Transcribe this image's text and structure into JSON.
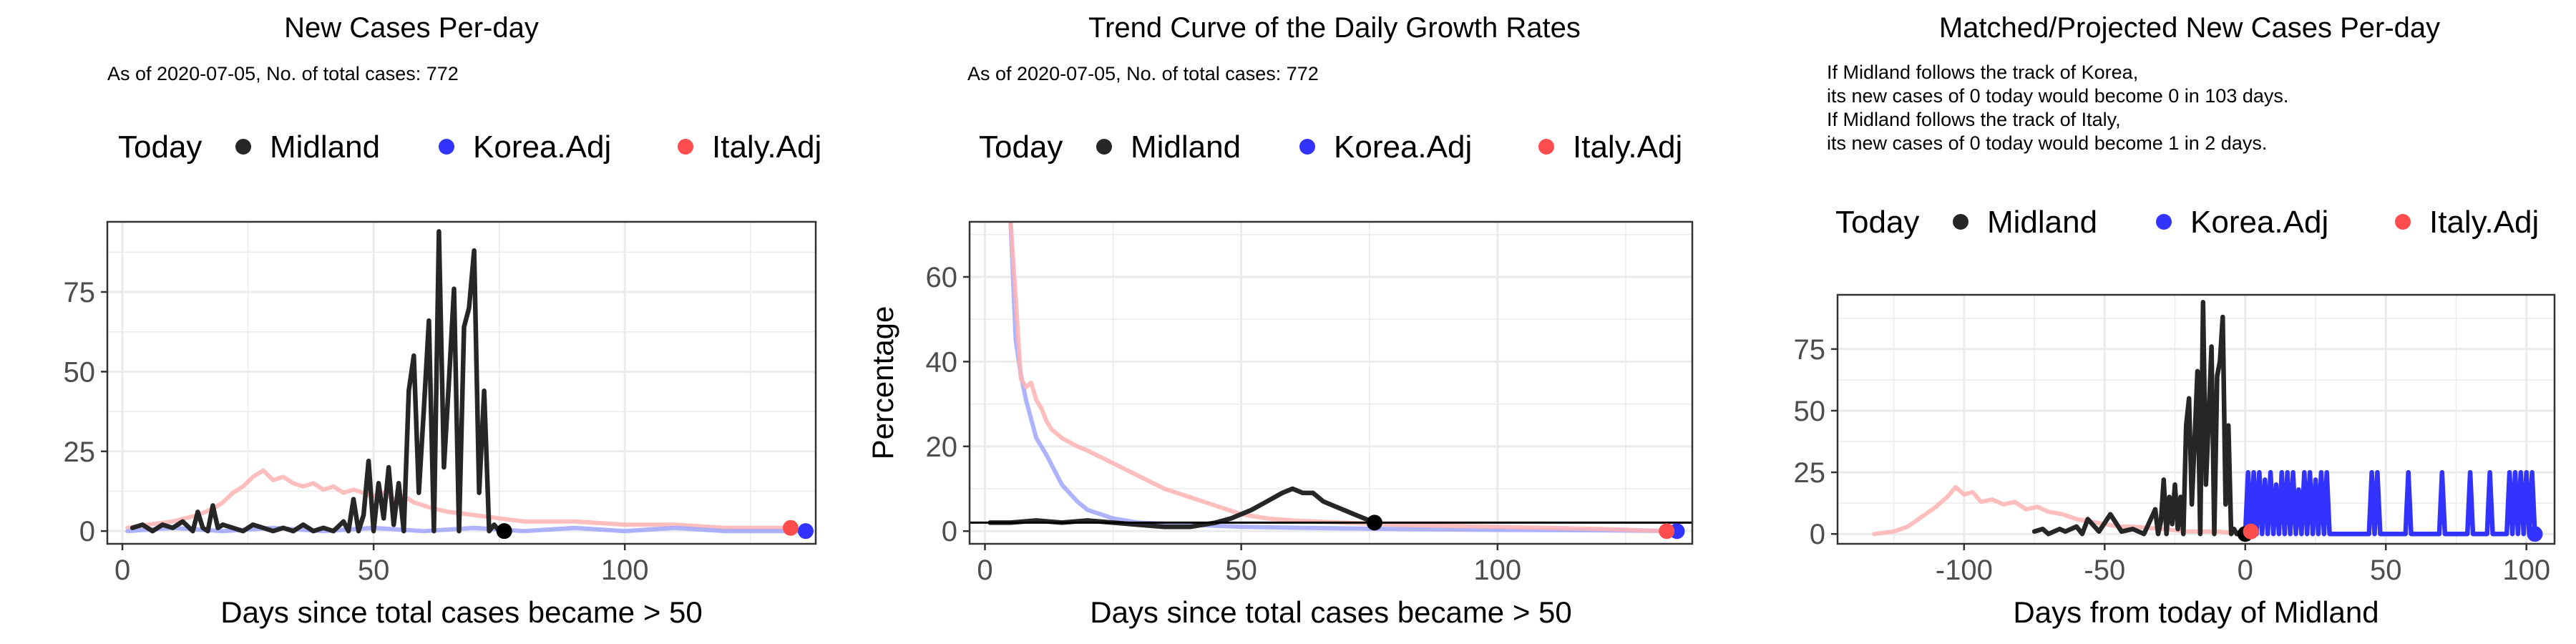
{
  "colors": {
    "today": "#000000",
    "midland": "#262626",
    "korea": "#3333ff",
    "italy": "#ff4d4d",
    "korea_faint": "#9fa6ff",
    "italy_faint": "#ffb3b3",
    "grid": "#ebebeb",
    "panel_border": "#333333"
  },
  "legend": {
    "title": "Today",
    "entries": [
      "Midland",
      "Korea.Adj",
      "Italy.Adj"
    ]
  },
  "chart_data": [
    {
      "type": "line",
      "title": "New Cases Per-day",
      "subtitle_lines": [
        "As of 2020-07-05, No. of total cases: 772"
      ],
      "xlabel": "Days since total cases became > 50",
      "ylabel": "",
      "xlim": [
        -3,
        138
      ],
      "ylim": [
        -4,
        97
      ],
      "xticks": [
        0,
        50,
        100
      ],
      "yticks": [
        0,
        25,
        50,
        75
      ],
      "grid": true,
      "legend_position": "top",
      "series": [
        {
          "name": "Italy.Adj",
          "style": "faint",
          "x": [
            1,
            5,
            10,
            15,
            18,
            20,
            22,
            24,
            26,
            28,
            30,
            32,
            34,
            36,
            38,
            40,
            42,
            44,
            46,
            48,
            50,
            52,
            54,
            56,
            58,
            60,
            62,
            65,
            70,
            75,
            80,
            90,
            100,
            110,
            120,
            133
          ],
          "y": [
            1,
            2,
            3,
            5,
            7,
            9,
            12,
            14,
            17,
            19,
            16,
            17,
            15,
            14,
            15,
            13,
            14,
            12,
            13,
            12,
            11,
            12,
            10,
            11,
            9,
            8,
            7,
            6,
            5,
            4,
            3,
            3,
            2,
            2,
            1,
            1
          ]
        },
        {
          "name": "Korea.Adj",
          "style": "faint",
          "x": [
            1,
            10,
            20,
            30,
            40,
            50,
            60,
            70,
            80,
            90,
            100,
            110,
            120,
            136
          ],
          "y": [
            0,
            1,
            0,
            1,
            0,
            1,
            0,
            1,
            0,
            1,
            0,
            1,
            0,
            0
          ]
        },
        {
          "name": "Midland",
          "style": "bold",
          "x": [
            2,
            4,
            6,
            8,
            10,
            12,
            14,
            15,
            16,
            17,
            18,
            19,
            20,
            22,
            24,
            26,
            28,
            30,
            32,
            34,
            36,
            38,
            40,
            42,
            44,
            45,
            46,
            47,
            48,
            49,
            50,
            51,
            52,
            53,
            54,
            55,
            56,
            57,
            58,
            59,
            60,
            61,
            62,
            63,
            64,
            65,
            66,
            67,
            68,
            69,
            70,
            71,
            72,
            73,
            74,
            75,
            76
          ],
          "y": [
            1,
            2,
            0,
            2,
            1,
            3,
            0,
            6,
            1,
            0,
            8,
            1,
            2,
            1,
            0,
            2,
            1,
            0,
            1,
            0,
            2,
            0,
            1,
            0,
            3,
            0,
            10,
            0,
            5,
            22,
            0,
            15,
            4,
            20,
            2,
            15,
            0,
            44,
            55,
            12,
            38,
            66,
            0,
            94,
            20,
            47,
            76,
            0,
            64,
            70,
            88,
            12,
            44,
            0,
            2,
            0,
            0
          ]
        }
      ],
      "today_points": [
        {
          "series": "Midland",
          "x": 76,
          "y": 0
        },
        {
          "series": "Korea.Adj",
          "x": 136,
          "y": 0
        },
        {
          "series": "Italy.Adj",
          "x": 133,
          "y": 1
        }
      ]
    },
    {
      "type": "line",
      "title": "Trend Curve of the Daily Growth Rates",
      "subtitle_lines": [
        "As of 2020-07-05, No. of total cases: 772"
      ],
      "xlabel": "Days since total cases became > 50",
      "ylabel": "Percentage",
      "xlim": [
        -3,
        138
      ],
      "ylim": [
        -3,
        73
      ],
      "xticks": [
        0,
        50,
        100
      ],
      "yticks": [
        0,
        20,
        40,
        60
      ],
      "grid": true,
      "reference_line_y": 2,
      "legend_position": "top",
      "series": [
        {
          "name": "Korea.Adj",
          "style": "faint",
          "x": [
            5,
            6,
            7,
            8,
            10,
            12,
            15,
            18,
            20,
            25,
            30,
            40,
            50,
            60,
            80,
            100,
            120,
            135
          ],
          "y": [
            73,
            45,
            37,
            31,
            22,
            18,
            11,
            7,
            5,
            3,
            2,
            1.5,
            1,
            0.8,
            0.5,
            0.3,
            0.2,
            0
          ]
        },
        {
          "name": "Italy.Adj",
          "style": "faint",
          "x": [
            5,
            6,
            7,
            8,
            9,
            10,
            11,
            12,
            13,
            15,
            18,
            20,
            25,
            30,
            35,
            40,
            45,
            50,
            55,
            60,
            70,
            80,
            100,
            120,
            133
          ],
          "y": [
            73,
            55,
            36,
            34,
            35,
            31,
            29,
            26,
            24,
            22,
            20,
            19,
            16,
            13,
            10,
            8,
            6,
            4,
            3,
            2.5,
            2,
            1.5,
            1,
            0.5,
            0
          ]
        },
        {
          "name": "Midland",
          "style": "bold",
          "x": [
            1,
            5,
            10,
            15,
            20,
            25,
            30,
            35,
            40,
            45,
            48,
            50,
            52,
            55,
            58,
            60,
            62,
            64,
            66,
            68,
            70,
            72,
            74,
            76
          ],
          "y": [
            2,
            2,
            2.5,
            2,
            2.5,
            2,
            1.5,
            1,
            1,
            2,
            3,
            4,
            5,
            7,
            9,
            10,
            9,
            9,
            7,
            6,
            5,
            4,
            3,
            2
          ]
        }
      ],
      "today_points": [
        {
          "series": "Midland",
          "x": 76,
          "y": 2
        },
        {
          "series": "Korea.Adj",
          "x": 135,
          "y": 0
        },
        {
          "series": "Italy.Adj",
          "x": 133,
          "y": 0
        }
      ]
    },
    {
      "type": "line",
      "title": "Matched/Projected New Cases Per-day",
      "subtitle_lines": [
        "If Midland follows the track of Korea,",
        "its new cases of 0 today would become 0 in 103 days.",
        "If Midland follows the track of Italy,",
        "its new cases of 0 today would become 1 in 2 days."
      ],
      "xlabel": "Days from today of Midland",
      "ylabel": "",
      "xlim": [
        -145,
        110
      ],
      "ylim": [
        -4,
        97
      ],
      "xticks": [
        -100,
        -50,
        0,
        50,
        100
      ],
      "yticks": [
        0,
        25,
        50,
        75
      ],
      "grid": true,
      "legend_position": "top",
      "series": [
        {
          "name": "Italy.Adj",
          "style": "faint",
          "x": [
            -132,
            -125,
            -120,
            -115,
            -110,
            -106,
            -103,
            -100,
            -97,
            -94,
            -90,
            -86,
            -82,
            -78,
            -74,
            -70,
            -65,
            -60,
            -55,
            -50,
            -45,
            -40,
            -30,
            -20,
            -10,
            0
          ],
          "y": [
            0,
            1,
            3,
            7,
            11,
            15,
            19,
            16,
            17,
            13,
            14,
            12,
            13,
            10,
            11,
            9,
            8,
            6,
            5,
            4,
            3,
            3,
            2,
            1,
            1,
            0
          ]
        },
        {
          "name": "Midland",
          "style": "bold",
          "x": [
            -75,
            -72,
            -70,
            -66,
            -64,
            -60,
            -58,
            -56,
            -52,
            -48,
            -44,
            -40,
            -36,
            -32,
            -31,
            -30,
            -29,
            -28,
            -27,
            -26,
            -25,
            -24,
            -23,
            -22,
            -21,
            -20,
            -19,
            -18,
            -17,
            -16,
            -15,
            -14,
            -13,
            -12,
            -11,
            -10,
            -9,
            -8,
            -7,
            -6,
            -5,
            -4,
            -3,
            -2,
            -1,
            0
          ],
          "y": [
            1,
            2,
            0,
            2,
            1,
            3,
            0,
            6,
            1,
            8,
            1,
            2,
            0,
            10,
            0,
            5,
            22,
            0,
            15,
            4,
            20,
            2,
            15,
            0,
            44,
            55,
            12,
            38,
            66,
            0,
            94,
            20,
            47,
            76,
            0,
            64,
            70,
            88,
            12,
            44,
            0,
            2,
            0,
            0,
            0,
            0
          ]
        },
        {
          "name": "Korea.Adj",
          "style": "bold",
          "x": [
            0,
            1,
            2,
            3,
            4,
            5,
            6,
            7,
            8,
            9,
            10,
            11,
            12,
            13,
            14,
            15,
            16,
            17,
            18,
            19,
            20,
            21,
            22,
            23,
            24,
            25,
            26,
            27,
            28,
            29,
            30,
            44,
            45,
            46,
            47,
            48,
            57,
            58,
            59,
            60,
            69,
            70,
            71,
            72,
            79,
            80,
            81,
            82,
            86,
            87,
            88,
            89,
            93,
            94,
            95,
            96,
            97,
            98,
            99,
            100,
            101,
            102,
            103
          ],
          "y": [
            0,
            25,
            0,
            25,
            0,
            25,
            0,
            22,
            0,
            25,
            0,
            20,
            0,
            25,
            0,
            25,
            0,
            25,
            0,
            18,
            0,
            25,
            0,
            25,
            0,
            22,
            0,
            25,
            0,
            25,
            0,
            0,
            25,
            0,
            25,
            0,
            0,
            25,
            0,
            0,
            0,
            25,
            0,
            0,
            0,
            25,
            0,
            0,
            0,
            25,
            0,
            0,
            0,
            25,
            0,
            25,
            0,
            25,
            0,
            25,
            0,
            25,
            0
          ]
        }
      ],
      "today_points": [
        {
          "series": "Midland",
          "x": 0,
          "y": 0
        },
        {
          "series": "Korea.Adj",
          "x": 103,
          "y": 0
        },
        {
          "series": "Italy.Adj",
          "x": 2,
          "y": 1
        }
      ]
    }
  ]
}
